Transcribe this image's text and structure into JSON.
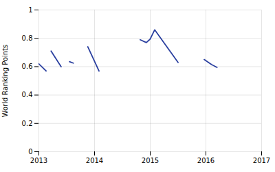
{
  "chart_data": {
    "type": "line",
    "ylabel": "World Ranking Points",
    "x": [
      2013.0,
      2013.13,
      null,
      2013.22,
      2013.4,
      null,
      2013.55,
      2013.62,
      null,
      2013.88,
      2014.08,
      null,
      2014.82,
      2014.93,
      2015.0,
      2015.08,
      2015.5,
      null,
      2015.97,
      2016.1,
      2016.2
    ],
    "values": [
      0.62,
      0.57,
      null,
      0.71,
      0.6,
      null,
      0.635,
      0.625,
      null,
      0.74,
      0.57,
      null,
      0.79,
      0.77,
      0.795,
      0.86,
      0.63,
      null,
      0.65,
      0.615,
      0.595
    ],
    "color": "#2a3f9f",
    "xlim": [
      2013,
      2017
    ],
    "xticks": [
      2013,
      2014,
      2015,
      2016,
      2017
    ],
    "ylim": [
      0,
      1
    ],
    "yticks": [
      0,
      0.2,
      0.4,
      0.6,
      0.8,
      1
    ],
    "grid": true
  }
}
